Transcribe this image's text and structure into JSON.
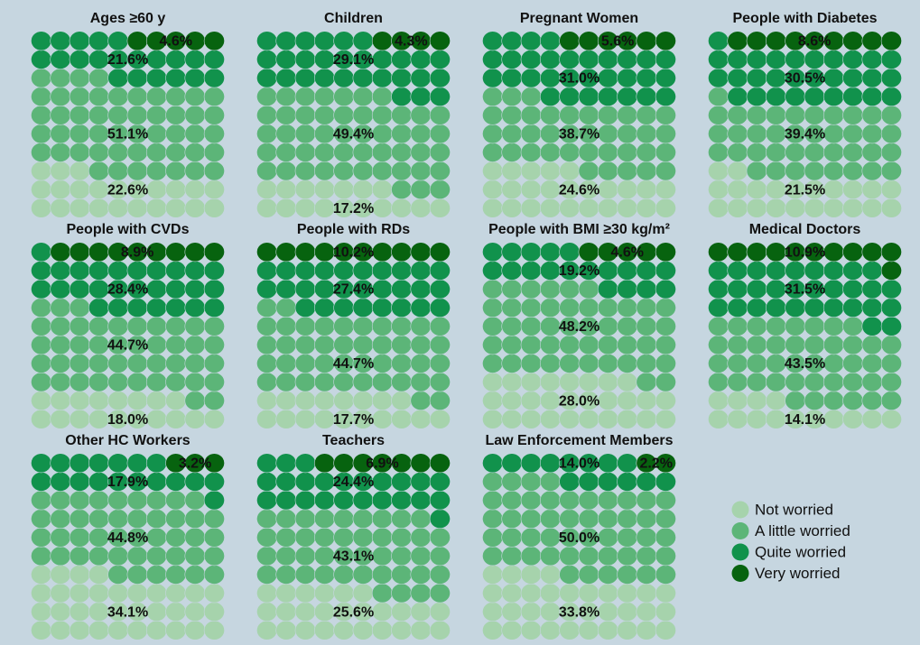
{
  "chart_data": [
    {
      "type": "waffle",
      "title": "Ages ≥60 y",
      "values": [
        22.6,
        51.1,
        21.6,
        4.6
      ],
      "value_labels": [
        "22.6%",
        "51.1%",
        "21.6%",
        "4.6%"
      ]
    },
    {
      "type": "waffle",
      "title": "Children",
      "values": [
        17.2,
        49.4,
        29.1,
        4.3
      ],
      "value_labels": [
        "17.2%",
        "49.4%",
        "29.1%",
        "4.3%"
      ]
    },
    {
      "type": "waffle",
      "title": "Pregnant Women",
      "values": [
        24.6,
        38.7,
        31.0,
        5.6
      ],
      "value_labels": [
        "24.6%",
        "38.7%",
        "31.0%",
        "5.6%"
      ]
    },
    {
      "type": "waffle",
      "title": "People with Diabetes",
      "values": [
        21.5,
        39.4,
        30.5,
        8.6
      ],
      "value_labels": [
        "21.5%",
        "39.4%",
        "30.5%",
        "8.6%"
      ]
    },
    {
      "type": "waffle",
      "title": "People with CVDs",
      "values": [
        18.0,
        44.7,
        28.4,
        8.9
      ],
      "value_labels": [
        "18.0%",
        "44.7%",
        "28.4%",
        "8.9%"
      ]
    },
    {
      "type": "waffle",
      "title": "People with RDs",
      "values": [
        17.7,
        44.7,
        27.4,
        10.2
      ],
      "value_labels": [
        "17.7%",
        "44.7%",
        "27.4%",
        "10.2%"
      ]
    },
    {
      "type": "waffle",
      "title": "People with BMI ≥30 kg/m²",
      "values": [
        28.0,
        48.2,
        19.2,
        4.6
      ],
      "value_labels": [
        "28.0%",
        "48.2%",
        "19.2%",
        "4.6%"
      ]
    },
    {
      "type": "waffle",
      "title": "Medical Doctors",
      "values": [
        14.1,
        43.5,
        31.5,
        10.9
      ],
      "value_labels": [
        "14.1%",
        "43.5%",
        "31.5%",
        "10.9%"
      ]
    },
    {
      "type": "waffle",
      "title": "Other HC Workers",
      "values": [
        34.1,
        44.8,
        17.9,
        3.2
      ],
      "value_labels": [
        "34.1%",
        "44.8%",
        "17.9%",
        "3.2%"
      ]
    },
    {
      "type": "waffle",
      "title": "Teachers",
      "values": [
        25.6,
        43.1,
        24.4,
        6.9
      ],
      "value_labels": [
        "25.6%",
        "43.1%",
        "24.4%",
        "6.9%"
      ]
    },
    {
      "type": "waffle",
      "title": "Law Enforcement Members",
      "values": [
        33.8,
        50.0,
        14.0,
        2.2
      ],
      "value_labels": [
        "33.8%",
        "50.0%",
        "14.0%",
        "2.2%"
      ]
    }
  ],
  "legend": {
    "labels": [
      "Not worried",
      "A little worried",
      "Quite worried",
      "Very worried"
    ],
    "colors": [
      "#a6d3ac",
      "#5cb578",
      "#11924c",
      "#07630f"
    ]
  }
}
